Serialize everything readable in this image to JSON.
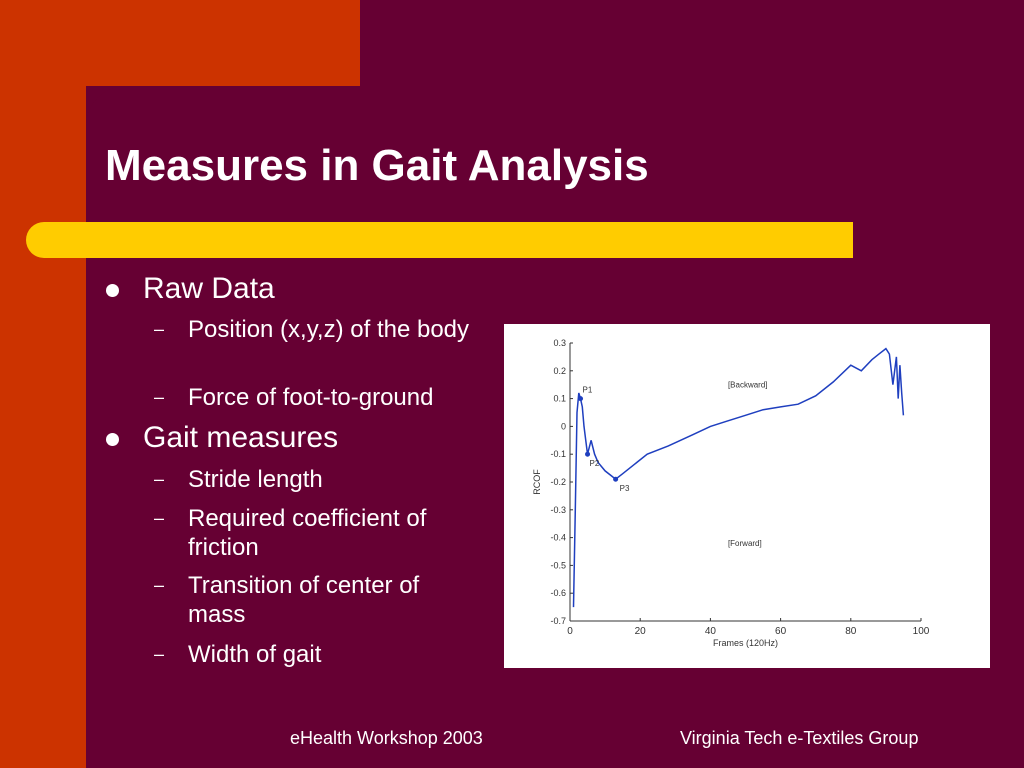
{
  "slide": {
    "title": "Measures in Gait Analysis",
    "colors": {
      "background": "#660033",
      "accent_orange": "#cc3300",
      "accent_yellow": "#ffcc00",
      "text": "#ffffff"
    },
    "bullets": [
      {
        "label": "Raw Data",
        "subs": [
          "Position (x,y,z) of the body",
          "Force of foot-to-ground"
        ]
      },
      {
        "label": "Gait measures",
        "subs": [
          "Stride length",
          "Required coefficient of friction",
          "Transition of center of mass",
          "Width of gait"
        ]
      }
    ],
    "footer_left": "eHealth Workshop 2003",
    "footer_right": "Virginia Tech e-Textiles Group"
  },
  "chart_data": {
    "type": "line",
    "xlabel": "Frames (120Hz)",
    "ylabel": "RCOF",
    "xlim": [
      0,
      100
    ],
    "ylim": [
      -0.7,
      0.3
    ],
    "xticks": [
      "0",
      "20",
      "40",
      "60",
      "80",
      "100"
    ],
    "yticks": [
      "0.3",
      "0.2",
      "0.1",
      "0",
      "-0.1",
      "-0.2",
      "-0.3",
      "-0.4",
      "-0.5",
      "-0.6",
      "-0.7"
    ],
    "annotations": [
      {
        "text": "P1",
        "x": 3,
        "y": 0.1
      },
      {
        "text": "P2",
        "x": 5,
        "y": -0.1
      },
      {
        "text": "P3",
        "x": 13,
        "y": -0.19
      },
      {
        "text": "[Backward]",
        "x": 45,
        "y": 0.14
      },
      {
        "text": "[Forward]",
        "x": 45,
        "y": -0.43
      }
    ],
    "series": [
      {
        "color": "#1f3fbf",
        "x": [
          1,
          1.5,
          2,
          2.5,
          3,
          3.5,
          4,
          5,
          6,
          7,
          8,
          10,
          12,
          13,
          15,
          18,
          22,
          28,
          35,
          40,
          45,
          50,
          55,
          60,
          65,
          70,
          75,
          80,
          83,
          86,
          88,
          90,
          91,
          92,
          93,
          93.5,
          94,
          94.5,
          95
        ],
        "y": [
          -0.65,
          -0.3,
          0.05,
          0.12,
          0.1,
          0.07,
          0.0,
          -0.1,
          -0.05,
          -0.1,
          -0.13,
          -0.16,
          -0.18,
          -0.19,
          -0.17,
          -0.14,
          -0.1,
          -0.07,
          -0.03,
          0.0,
          0.02,
          0.04,
          0.06,
          0.07,
          0.08,
          0.11,
          0.16,
          0.22,
          0.2,
          0.24,
          0.26,
          0.28,
          0.26,
          0.15,
          0.25,
          0.1,
          0.22,
          0.12,
          0.04
        ]
      }
    ]
  }
}
